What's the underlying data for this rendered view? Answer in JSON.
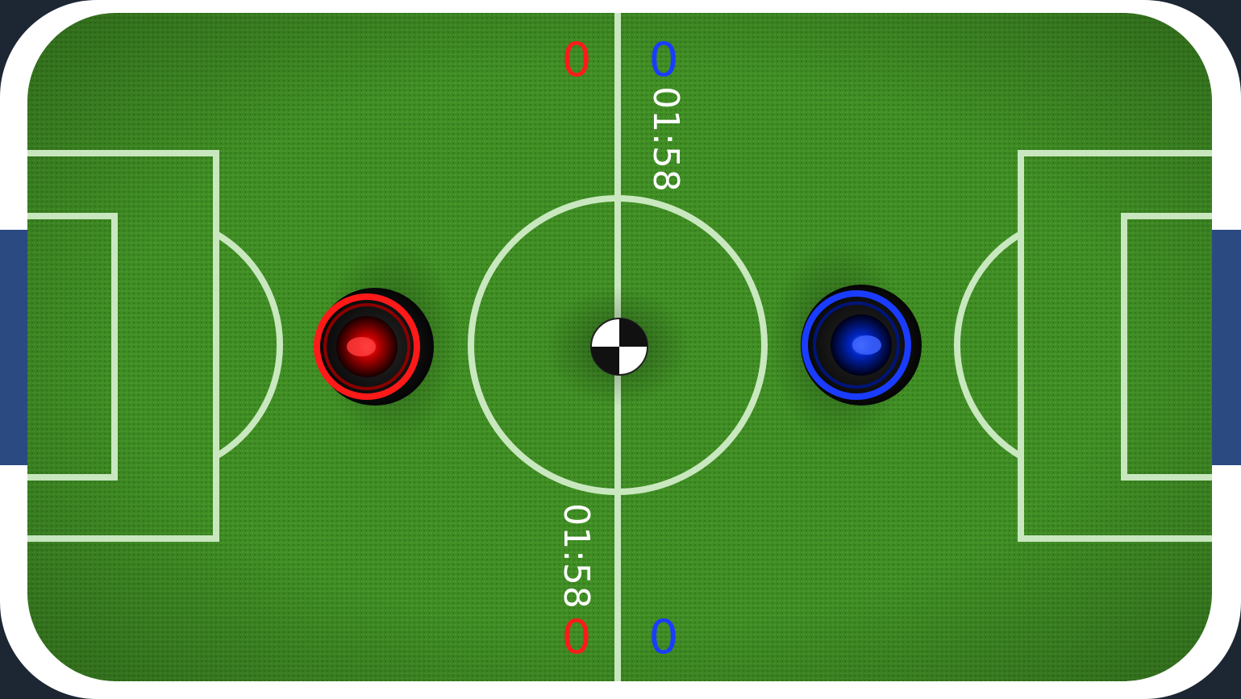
{
  "hud_top": {
    "timer": "01:58",
    "red_score": "0",
    "blue_score": "0"
  },
  "hud_bottom": {
    "timer": "01:58",
    "red_score": "0",
    "blue_score": "0"
  },
  "colors": {
    "pitch": "#3d8a22",
    "lines": "#d8f2d0",
    "border": "#ffffff",
    "goal": "#2b4a82",
    "red_player": "#ff1a1a",
    "blue_player": "#1a3cff",
    "background": "#1d2633"
  },
  "icons": {
    "red_mallet": "red-mallet-icon",
    "blue_mallet": "blue-mallet-icon",
    "ball": "ball-icon"
  }
}
